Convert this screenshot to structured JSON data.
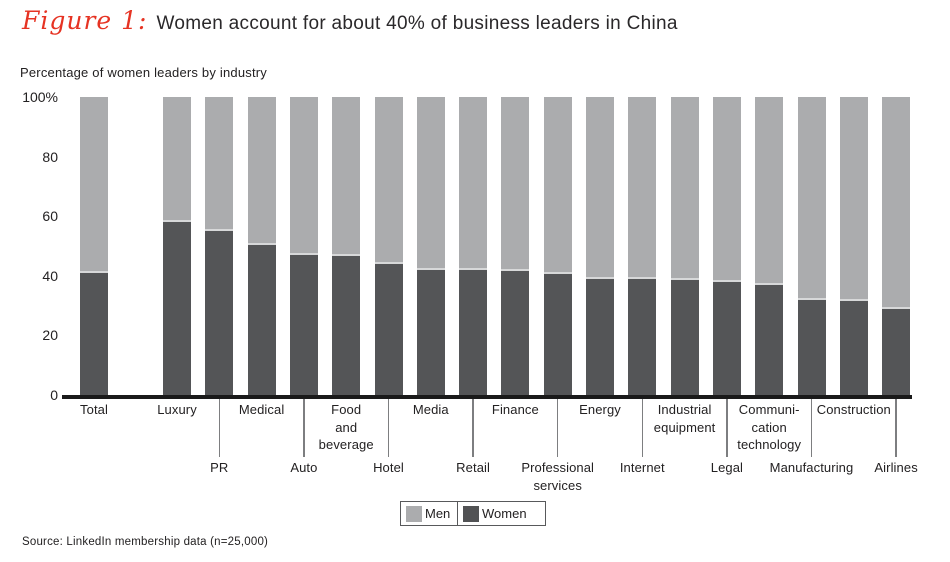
{
  "figure": {
    "label": "Figure 1:",
    "title": "Women account for about 40% of business leaders in China",
    "subtitle": "Percentage of women leaders by industry",
    "source": "Source: LinkedIn membership data (n=25,000)",
    "accent_red": "#e63323",
    "text_color": "#232122",
    "axis_color": "#1a1a1a"
  },
  "legend": {
    "items": [
      {
        "label": "Men",
        "color": "#abacae"
      },
      {
        "label": "Women",
        "color": "#515254"
      }
    ]
  },
  "chart_data": {
    "type": "bar",
    "stacked": true,
    "orientation": "vertical",
    "title": "Women account for about 40% of business leaders in China",
    "ylabel": "Percentage of women leaders by industry",
    "ylim": [
      0,
      100
    ],
    "grid": false,
    "legend_position": "bottom",
    "categories": [
      "Total",
      "Luxury",
      "PR",
      "Medical",
      "Auto",
      "Food and beverage",
      "Hotel",
      "Media",
      "Retail",
      "Finance",
      "Professional services",
      "Energy",
      "Internet",
      "Industrial equipment",
      "Legal",
      "Communication technology",
      "Manufacturing",
      "Construction",
      "Airlines"
    ],
    "display_labels": [
      "Total",
      "Luxury",
      "PR",
      "Medical",
      "Auto",
      "Food\nand\nbeverage",
      "Hotel",
      "Media",
      "Retail",
      "Finance",
      "Professional\nservices",
      "Energy",
      "Internet",
      "Industrial\nequipment",
      "Legal",
      "Communi-\ncation\ntechnology",
      "Manufacturing",
      "Construction",
      "Airlines"
    ],
    "label_rows": [
      1,
      1,
      2,
      1,
      2,
      1,
      2,
      1,
      2,
      1,
      2,
      1,
      2,
      1,
      2,
      1,
      2,
      1,
      2
    ],
    "series": [
      {
        "name": "Women",
        "color": "#545557",
        "values": [
          41,
          58,
          55,
          50.5,
          47,
          46.5,
          44,
          42,
          42,
          41.5,
          40.5,
          39,
          39,
          38.5,
          38,
          37,
          32,
          31.5,
          29
        ]
      },
      {
        "name": "Men",
        "color": "#abacae",
        "values": [
          59,
          42,
          45,
          49.5,
          53,
          53.5,
          56,
          58,
          58,
          58.5,
          59.5,
          61,
          61,
          61.5,
          62,
          63,
          68,
          68.5,
          71
        ]
      }
    ],
    "y_ticks": [
      {
        "label": "100%",
        "value": 100
      },
      {
        "label": "80",
        "value": 80
      },
      {
        "label": "60",
        "value": 60
      },
      {
        "label": "40",
        "value": 40
      },
      {
        "label": "20",
        "value": 20
      },
      {
        "label": "0",
        "value": 0
      }
    ]
  }
}
